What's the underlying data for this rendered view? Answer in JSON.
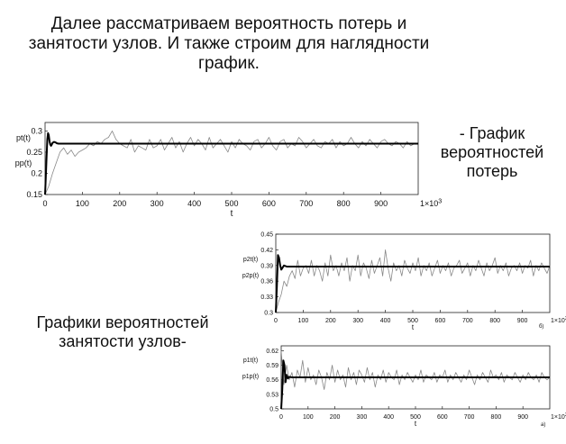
{
  "slide": {
    "heading_lines": [
      "Далее рассматриваем вероятность потерь и",
      "занятости узлов. И также строим для наглядности",
      "график."
    ],
    "caption_loss_lines": [
      "- График",
      "вероятностей",
      "потерь"
    ],
    "caption_nodes_lines": [
      "Графики вероятностей",
      "занятости узлов-"
    ]
  },
  "chart_data": [
    {
      "type": "line",
      "title": "",
      "xlabel": "t",
      "ylabels": [
        "pt(t)",
        "pp(t)"
      ],
      "x_multiplier_label": "1×10",
      "x_multiplier_exp": "3",
      "xlim": [
        0,
        1000
      ],
      "ylim": [
        0.15,
        0.32
      ],
      "xticks": [
        "0",
        "100",
        "200",
        "300",
        "400",
        "500",
        "600",
        "700",
        "800",
        "900"
      ],
      "yticks": [
        "0.15",
        "0.2",
        "0.25",
        "0.3"
      ],
      "ytick_values": [
        0.15,
        0.2,
        0.25,
        0.3
      ],
      "panel_tag": "",
      "grid": false,
      "series": [
        {
          "color": "#000000",
          "style": "thick",
          "x": [
            0,
            2,
            4,
            6,
            8,
            10,
            12,
            14,
            16,
            18,
            20,
            24,
            28,
            32,
            36,
            40,
            50,
            60,
            80,
            100,
            150,
            200,
            300,
            400,
            500,
            600,
            700,
            800,
            900,
            1000
          ],
          "y": [
            0.15,
            0.19,
            0.24,
            0.28,
            0.295,
            0.29,
            0.275,
            0.268,
            0.265,
            0.268,
            0.272,
            0.274,
            0.273,
            0.271,
            0.27,
            0.27,
            0.27,
            0.27,
            0.27,
            0.27,
            0.27,
            0.27,
            0.27,
            0.27,
            0.27,
            0.27,
            0.27,
            0.27,
            0.27,
            0.27
          ]
        },
        {
          "color": "#888888",
          "style": "thin",
          "x": [
            0,
            10,
            20,
            30,
            40,
            50,
            60,
            70,
            80,
            90,
            100,
            110,
            120,
            130,
            140,
            150,
            160,
            170,
            180,
            190,
            200,
            210,
            220,
            230,
            240,
            250,
            260,
            270,
            280,
            290,
            300,
            310,
            320,
            330,
            340,
            350,
            360,
            370,
            380,
            390,
            400,
            410,
            420,
            430,
            440,
            450,
            460,
            470,
            480,
            490,
            500,
            510,
            520,
            530,
            540,
            550,
            560,
            570,
            580,
            590,
            600,
            610,
            620,
            630,
            640,
            650,
            660,
            670,
            680,
            690,
            700,
            710,
            720,
            730,
            740,
            750,
            760,
            770,
            780,
            790,
            800,
            810,
            820,
            830,
            840,
            850,
            860,
            870,
            880,
            890,
            900,
            910,
            920,
            930,
            940,
            950,
            960,
            970,
            980,
            990,
            1000
          ],
          "y": [
            0.15,
            0.17,
            0.2,
            0.225,
            0.25,
            0.26,
            0.245,
            0.255,
            0.24,
            0.25,
            0.255,
            0.26,
            0.27,
            0.265,
            0.275,
            0.27,
            0.28,
            0.285,
            0.3,
            0.28,
            0.27,
            0.265,
            0.26,
            0.28,
            0.25,
            0.265,
            0.26,
            0.255,
            0.28,
            0.26,
            0.265,
            0.28,
            0.255,
            0.27,
            0.285,
            0.26,
            0.275,
            0.25,
            0.27,
            0.285,
            0.265,
            0.28,
            0.27,
            0.255,
            0.285,
            0.26,
            0.27,
            0.28,
            0.265,
            0.25,
            0.275,
            0.26,
            0.28,
            0.27,
            0.265,
            0.255,
            0.275,
            0.28,
            0.26,
            0.27,
            0.285,
            0.265,
            0.255,
            0.275,
            0.28,
            0.26,
            0.27,
            0.265,
            0.285,
            0.275,
            0.26,
            0.27,
            0.28,
            0.265,
            0.26,
            0.275,
            0.27,
            0.28,
            0.26,
            0.275,
            0.265,
            0.27,
            0.285,
            0.27,
            0.26,
            0.275,
            0.265,
            0.28,
            0.27,
            0.26,
            0.275,
            0.28,
            0.27,
            0.265,
            0.275,
            0.27,
            0.26,
            0.275,
            0.265,
            0.27,
            0.27
          ]
        }
      ]
    },
    {
      "type": "line",
      "title": "",
      "xlabel": "t",
      "ylabels": [
        "p2t(t)",
        "p2p(t)"
      ],
      "x_multiplier_label": "1×10",
      "x_multiplier_exp": "3",
      "xlim": [
        0,
        1000
      ],
      "ylim": [
        0.3,
        0.45
      ],
      "xticks": [
        "0",
        "100",
        "200",
        "300",
        "400",
        "500",
        "600",
        "700",
        "800",
        "900"
      ],
      "yticks": [
        "0.3",
        "0.33",
        "0.36",
        "0.39",
        "0.42",
        "0.45"
      ],
      "ytick_values": [
        0.3,
        0.33,
        0.36,
        0.39,
        0.42,
        0.45
      ],
      "panel_tag": "б)",
      "grid": false,
      "series": [
        {
          "color": "#000000",
          "style": "thick",
          "x": [
            0,
            4,
            8,
            12,
            16,
            20,
            25,
            30,
            40,
            50,
            60,
            80,
            100,
            200,
            300,
            400,
            500,
            600,
            700,
            800,
            900,
            1000
          ],
          "y": [
            0.3,
            0.35,
            0.41,
            0.405,
            0.39,
            0.382,
            0.386,
            0.39,
            0.388,
            0.388,
            0.388,
            0.388,
            0.388,
            0.388,
            0.388,
            0.388,
            0.388,
            0.388,
            0.388,
            0.388,
            0.388,
            0.388
          ]
        },
        {
          "color": "#888888",
          "style": "thin",
          "x": [
            0,
            10,
            20,
            30,
            40,
            50,
            60,
            70,
            80,
            90,
            100,
            110,
            120,
            130,
            140,
            150,
            160,
            170,
            180,
            190,
            200,
            210,
            220,
            230,
            240,
            250,
            260,
            270,
            280,
            290,
            300,
            310,
            320,
            330,
            340,
            350,
            360,
            370,
            380,
            390,
            400,
            410,
            420,
            430,
            440,
            450,
            460,
            470,
            480,
            490,
            500,
            510,
            520,
            530,
            540,
            550,
            560,
            570,
            580,
            590,
            600,
            610,
            620,
            630,
            640,
            650,
            660,
            670,
            680,
            690,
            700,
            710,
            720,
            730,
            740,
            750,
            760,
            770,
            780,
            790,
            800,
            810,
            820,
            830,
            840,
            850,
            860,
            870,
            880,
            890,
            900,
            910,
            920,
            930,
            940,
            950,
            960,
            970,
            980,
            990,
            1000
          ],
          "y": [
            0.3,
            0.32,
            0.335,
            0.36,
            0.35,
            0.37,
            0.38,
            0.365,
            0.4,
            0.37,
            0.385,
            0.39,
            0.375,
            0.4,
            0.37,
            0.39,
            0.38,
            0.36,
            0.395,
            0.37,
            0.41,
            0.38,
            0.39,
            0.37,
            0.395,
            0.38,
            0.405,
            0.36,
            0.39,
            0.38,
            0.41,
            0.37,
            0.395,
            0.385,
            0.365,
            0.4,
            0.375,
            0.39,
            0.405,
            0.37,
            0.42,
            0.385,
            0.36,
            0.395,
            0.38,
            0.39,
            0.37,
            0.4,
            0.385,
            0.375,
            0.395,
            0.38,
            0.405,
            0.37,
            0.39,
            0.38,
            0.395,
            0.37,
            0.385,
            0.4,
            0.375,
            0.39,
            0.38,
            0.395,
            0.37,
            0.385,
            0.39,
            0.4,
            0.375,
            0.385,
            0.395,
            0.37,
            0.39,
            0.38,
            0.4,
            0.385,
            0.37,
            0.395,
            0.38,
            0.39,
            0.405,
            0.375,
            0.39,
            0.38,
            0.395,
            0.37,
            0.385,
            0.39,
            0.38,
            0.395,
            0.375,
            0.39,
            0.385,
            0.4,
            0.37,
            0.39,
            0.38,
            0.395,
            0.385,
            0.375,
            0.39
          ]
        }
      ]
    },
    {
      "type": "line",
      "title": "",
      "xlabel": "t",
      "ylabels": [
        "p1t(t)",
        "p1p(t)"
      ],
      "x_multiplier_label": "1×10",
      "x_multiplier_exp": "3",
      "xlim": [
        0,
        1000
      ],
      "ylim": [
        0.5,
        0.63
      ],
      "xticks": [
        "0",
        "100",
        "200",
        "300",
        "400",
        "500",
        "600",
        "700",
        "800",
        "900"
      ],
      "yticks": [
        "0.5",
        "0.53",
        "0.56",
        "0.59",
        "0.62"
      ],
      "ytick_values": [
        0.5,
        0.53,
        0.56,
        0.59,
        0.62
      ],
      "panel_tag": "а)",
      "grid": false,
      "series": [
        {
          "color": "#000000",
          "style": "thick",
          "x": [
            0,
            4,
            8,
            12,
            16,
            20,
            25,
            30,
            40,
            50,
            60,
            80,
            100,
            200,
            300,
            400,
            500,
            600,
            700,
            800,
            900,
            1000
          ],
          "y": [
            0.5,
            0.54,
            0.6,
            0.59,
            0.555,
            0.57,
            0.563,
            0.566,
            0.565,
            0.565,
            0.565,
            0.565,
            0.565,
            0.565,
            0.565,
            0.565,
            0.565,
            0.565,
            0.565,
            0.565,
            0.565,
            0.565
          ]
        },
        {
          "color": "#888888",
          "style": "thin",
          "x": [
            0,
            10,
            20,
            30,
            40,
            50,
            60,
            70,
            80,
            90,
            100,
            110,
            120,
            130,
            140,
            150,
            160,
            170,
            180,
            190,
            200,
            210,
            220,
            230,
            240,
            250,
            260,
            270,
            280,
            290,
            300,
            310,
            320,
            330,
            340,
            350,
            360,
            370,
            380,
            390,
            400,
            410,
            420,
            430,
            440,
            450,
            460,
            470,
            480,
            490,
            500,
            510,
            520,
            530,
            540,
            550,
            560,
            570,
            580,
            590,
            600,
            610,
            620,
            630,
            640,
            650,
            660,
            670,
            680,
            690,
            700,
            710,
            720,
            730,
            740,
            750,
            760,
            770,
            780,
            790,
            800,
            810,
            820,
            830,
            840,
            850,
            860,
            870,
            880,
            890,
            900,
            910,
            920,
            930,
            940,
            950,
            960,
            970,
            980,
            990,
            1000
          ],
          "y": [
            0.62,
            0.55,
            0.59,
            0.56,
            0.575,
            0.545,
            0.58,
            0.565,
            0.6,
            0.555,
            0.585,
            0.56,
            0.57,
            0.55,
            0.58,
            0.565,
            0.54,
            0.575,
            0.56,
            0.59,
            0.555,
            0.58,
            0.56,
            0.57,
            0.545,
            0.585,
            0.56,
            0.575,
            0.55,
            0.58,
            0.57,
            0.555,
            0.585,
            0.56,
            0.575,
            0.545,
            0.57,
            0.56,
            0.58,
            0.555,
            0.575,
            0.565,
            0.56,
            0.58,
            0.55,
            0.57,
            0.56,
            0.575,
            0.565,
            0.555,
            0.57,
            0.56,
            0.58,
            0.555,
            0.57,
            0.565,
            0.56,
            0.575,
            0.555,
            0.57,
            0.565,
            0.58,
            0.555,
            0.57,
            0.56,
            0.575,
            0.565,
            0.555,
            0.57,
            0.56,
            0.58,
            0.565,
            0.55,
            0.57,
            0.56,
            0.575,
            0.565,
            0.555,
            0.58,
            0.565,
            0.57,
            0.56,
            0.575,
            0.555,
            0.57,
            0.565,
            0.56,
            0.575,
            0.565,
            0.555,
            0.57,
            0.56,
            0.575,
            0.565,
            0.56,
            0.57,
            0.555,
            0.575,
            0.565,
            0.56,
            0.565
          ]
        }
      ]
    }
  ]
}
